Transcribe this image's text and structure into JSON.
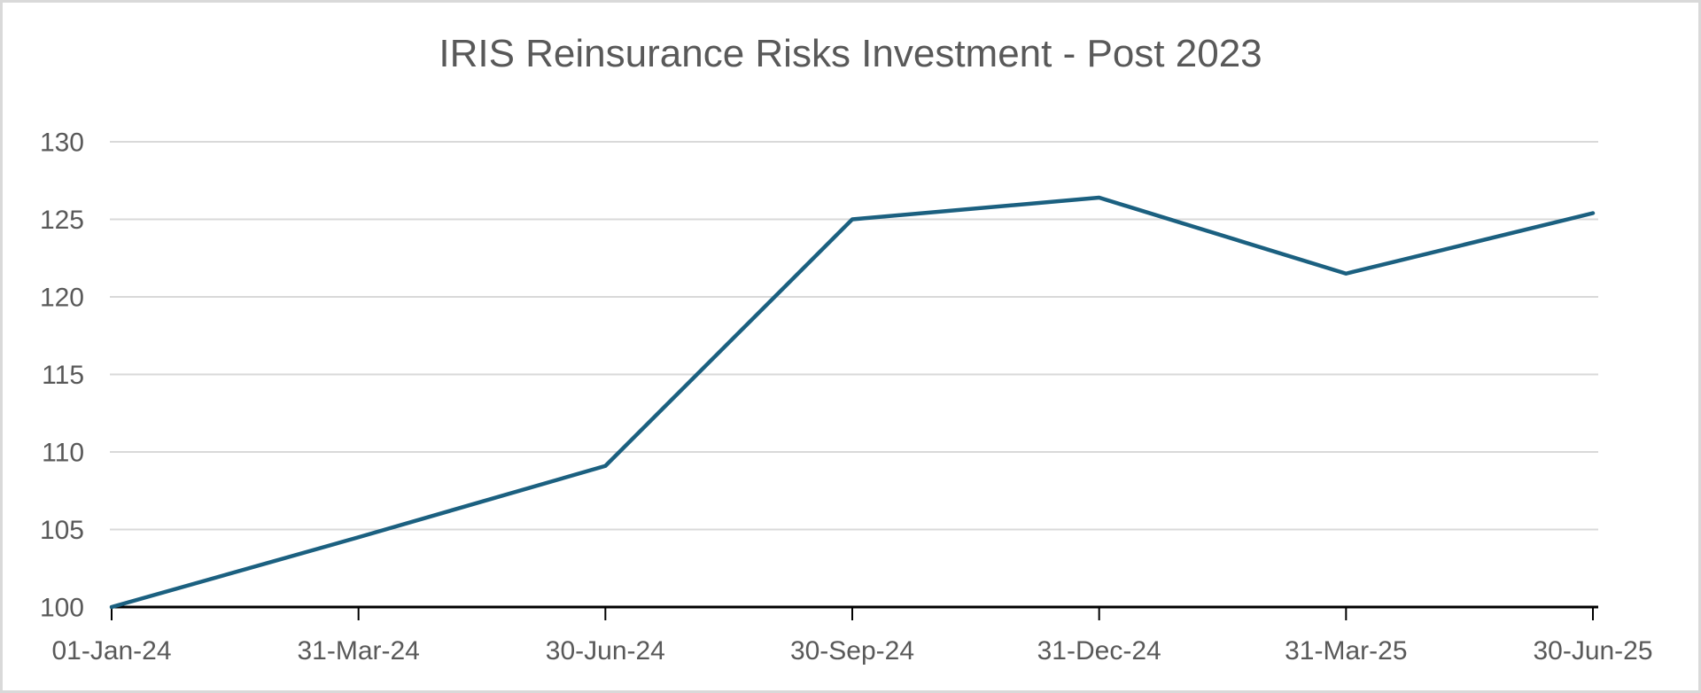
{
  "frame": {
    "background_color": "#FFFFFF",
    "border_color": "#D9D9D9"
  },
  "chart_data": {
    "type": "line",
    "title": "IRIS Reinsurance Risks Investment - Post 2023",
    "xlabel": "",
    "ylabel": "",
    "categories": [
      "01-Jan-24",
      "31-Mar-24",
      "30-Jun-24",
      "30-Sep-24",
      "31-Dec-24",
      "31-Mar-25",
      "30-Jun-25"
    ],
    "series": [
      {
        "name": "IRIS Reinsurance Risks Investment",
        "values": [
          100,
          104.5,
          109.1,
          125.0,
          126.4,
          121.5,
          125.4
        ]
      }
    ],
    "ylim": [
      100,
      130
    ],
    "yticks": [
      100,
      105,
      110,
      115,
      120,
      125,
      130
    ],
    "ytick_interval": 5,
    "grid": true,
    "legend_position": "none",
    "colors": {
      "line": "#1B6080",
      "gridline": "#D9D9D9",
      "axis_line": "#000000",
      "tick_text": "#595959",
      "title_text": "#595959"
    }
  }
}
